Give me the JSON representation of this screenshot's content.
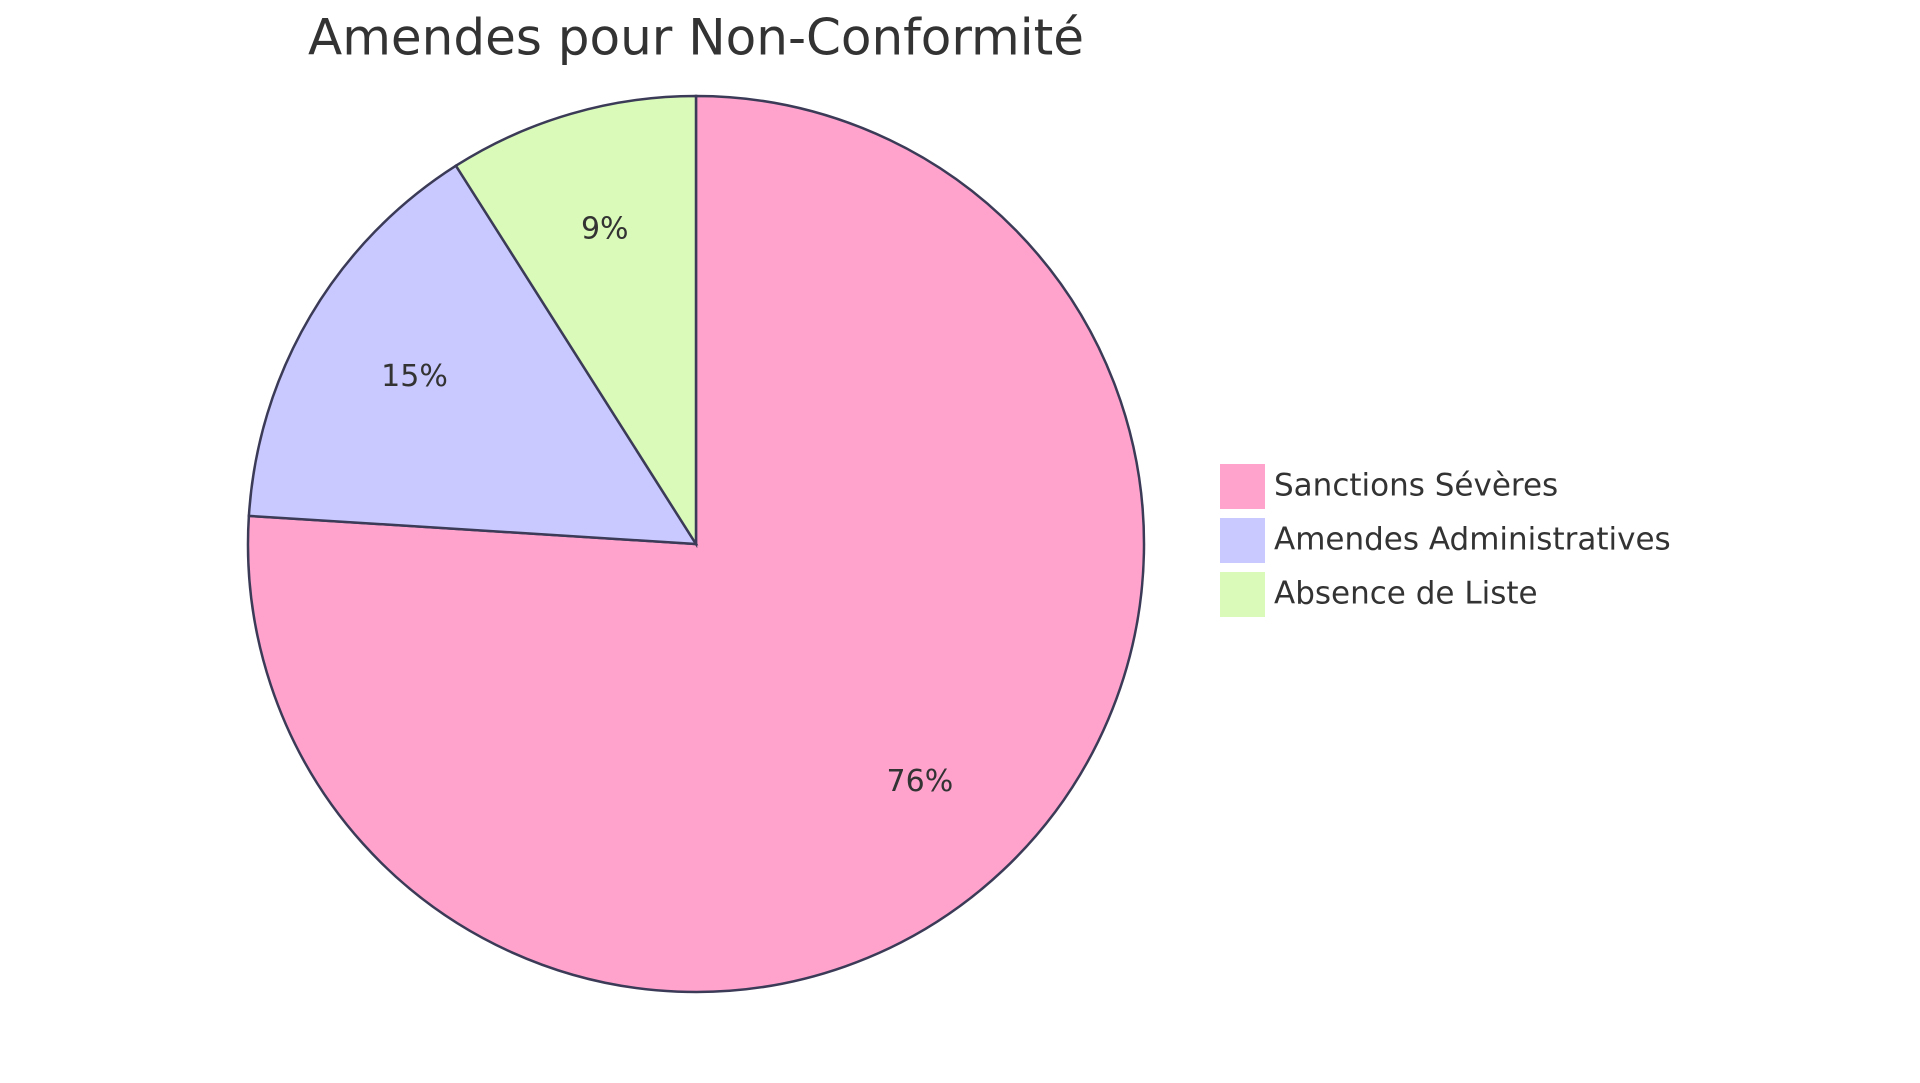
{
  "chart_data": {
    "type": "pie",
    "title": "Amendes pour Non-Conformité",
    "categories": [
      "Sanctions Sévères",
      "Amendes Administratives",
      "Absence de Liste"
    ],
    "values": [
      76,
      15,
      9
    ],
    "value_labels": [
      "76%",
      "15%",
      "9%"
    ],
    "colors": [
      "#ffa3cd",
      "#c9c9ff",
      "#dafab9"
    ],
    "legend": "right"
  }
}
